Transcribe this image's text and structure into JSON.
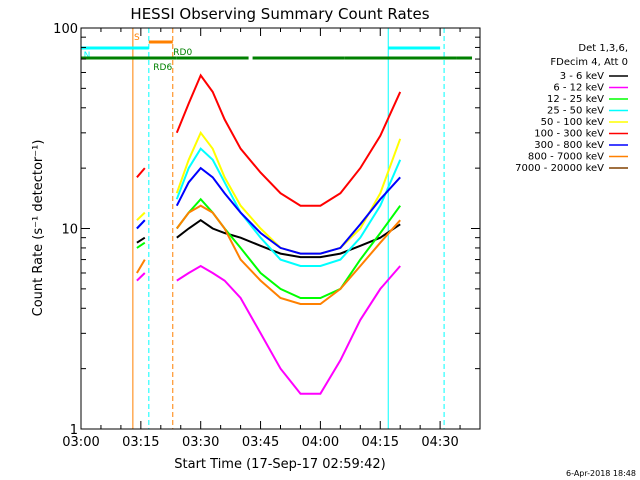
{
  "chart_data": {
    "type": "line",
    "title": "HESSI Observing Summary Count Rates",
    "xlabel": "Start Time (17-Sep-17 02:59:42)",
    "ylabel": "Count Rate (s⁻¹ detector⁻¹)",
    "yscale": "log",
    "ylim": [
      1,
      100
    ],
    "xlim": [
      "03:00",
      "04:40"
    ],
    "x_ticks": [
      "03:00",
      "03:15",
      "03:30",
      "03:45",
      "04:00",
      "04:15",
      "04:30"
    ],
    "y_ticks": [
      "1",
      "10",
      "100"
    ],
    "grid": false,
    "legend_header": [
      "Det 1,3,6,",
      "FDecim 4, Att 0"
    ],
    "legend_placement": "right",
    "footer": "6-Apr-2018 18:48",
    "flags": [
      {
        "label": "S",
        "color": "#ff8000",
        "segments": [
          [
            "03:17",
            "03:23"
          ]
        ]
      },
      {
        "label": "N",
        "color": "#00ffff",
        "segments": [
          [
            "03:00",
            "03:17"
          ],
          [
            "04:17",
            "04:30"
          ]
        ]
      },
      {
        "label": "RD6",
        "color": "#008000",
        "segments": [
          [
            "03:00",
            "03:24"
          ]
        ]
      },
      {
        "label": "RD0",
        "color": "#008000",
        "segments": [
          [
            "03:24",
            "03:42"
          ],
          [
            "03:43",
            "04:06"
          ],
          [
            "04:06",
            "04:34"
          ],
          [
            "04:34",
            "04:38"
          ]
        ]
      }
    ],
    "markers": [
      {
        "x": "03:00",
        "color": "#00ffff",
        "dash": false
      },
      {
        "x": "03:13",
        "color": "#ff8000",
        "dash": false
      },
      {
        "x": "03:17",
        "color": "#00ffff",
        "dash": true
      },
      {
        "x": "03:23",
        "color": "#ff8000",
        "dash": true
      },
      {
        "x": "04:17",
        "color": "#00ffff",
        "dash": false
      },
      {
        "x": "04:31",
        "color": "#00ffff",
        "dash": true
      }
    ],
    "x": [
      "03:14",
      "03:16",
      "03:22",
      "03:24",
      "03:27",
      "03:30",
      "03:33",
      "03:36",
      "03:40",
      "03:45",
      "03:50",
      "03:55",
      "04:00",
      "04:05",
      "04:10",
      "04:15",
      "04:20"
    ],
    "series": [
      {
        "name": "3 - 6 keV",
        "color": "#000000",
        "values": [
          8.5,
          9,
          null,
          9,
          10,
          11,
          10,
          9.5,
          9,
          8.2,
          7.5,
          7.2,
          7.2,
          7.5,
          8.2,
          9,
          10.5
        ]
      },
      {
        "name": "6 - 12 keV",
        "color": "#ff00ff",
        "values": [
          5.5,
          6,
          null,
          5.5,
          6,
          6.5,
          6,
          5.5,
          4.5,
          3,
          2,
          1.5,
          1.5,
          2.2,
          3.5,
          5,
          6.5
        ]
      },
      {
        "name": "12 - 25 keV",
        "color": "#00ff00",
        "values": [
          8,
          8.5,
          null,
          10,
          12,
          14,
          12,
          10,
          8,
          6,
          5,
          4.5,
          4.5,
          5,
          7,
          9.5,
          13
        ]
      },
      {
        "name": "25 - 50 keV",
        "color": "#00ffff",
        "values": [
          10,
          11,
          null,
          14,
          20,
          25,
          22,
          17,
          12,
          9,
          7,
          6.5,
          6.5,
          7,
          9,
          13,
          22
        ]
      },
      {
        "name": "50 - 100 keV",
        "color": "#ffff00",
        "values": [
          11,
          12,
          null,
          15,
          22,
          30,
          25,
          18,
          13,
          10,
          8,
          7.5,
          7.5,
          8,
          10,
          15,
          28
        ]
      },
      {
        "name": "100 - 300 keV",
        "color": "#ff0000",
        "values": [
          18,
          20,
          null,
          30,
          42,
          58,
          48,
          35,
          25,
          19,
          15,
          13,
          13,
          15,
          20,
          29,
          48
        ]
      },
      {
        "name": "300 - 800 keV",
        "color": "#0000ff",
        "values": [
          10,
          11,
          null,
          13,
          17,
          20,
          18,
          15,
          12,
          9.5,
          8,
          7.5,
          7.5,
          8,
          10.5,
          14,
          18
        ]
      },
      {
        "name": "800 - 7000 keV",
        "color": "#ff8000",
        "values": [
          6,
          7,
          null,
          10,
          12,
          13,
          12,
          10,
          7,
          5.5,
          4.5,
          4.2,
          4.2,
          5,
          6.5,
          8.5,
          11
        ]
      },
      {
        "name": "7000 - 20000 keV",
        "color": "#804000",
        "values": [
          null,
          null,
          null,
          null,
          null,
          null,
          null,
          null,
          null,
          null,
          null,
          null,
          null,
          null,
          null,
          null,
          null
        ]
      }
    ]
  }
}
